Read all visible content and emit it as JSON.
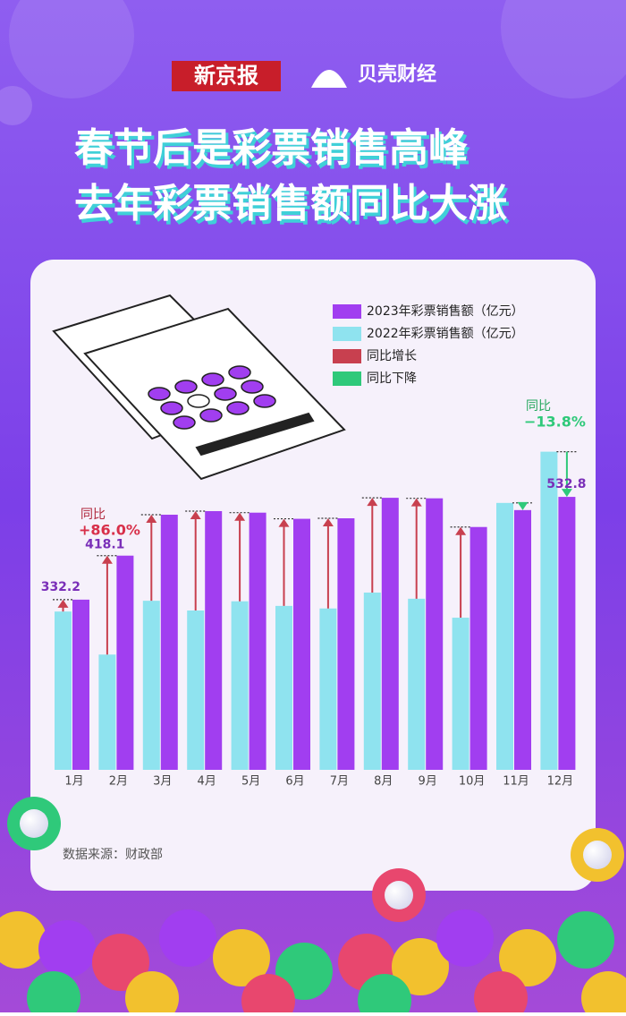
{
  "header": {
    "brand": "新京报",
    "sub_brand": "贝壳财经",
    "title_lines": [
      "春节后是彩票销售高峰",
      "去年彩票销售额同比大涨"
    ]
  },
  "chart_data": {
    "type": "bar",
    "categories": [
      "1月",
      "2月",
      "3月",
      "4月",
      "5月",
      "6月",
      "7月",
      "8月",
      "9月",
      "10月",
      "11月",
      "12月"
    ],
    "series": [
      {
        "name": "2023年彩票销售额（亿元）",
        "color": "#a13ef0",
        "values": [
          332.2,
          418.1,
          498,
          505,
          502,
          490,
          491,
          531,
          530,
          474,
          507,
          532.8
        ],
        "value_labels": [
          "332.2",
          "418.1",
          null,
          null,
          null,
          null,
          null,
          null,
          null,
          null,
          null,
          "532.8"
        ]
      },
      {
        "name": "2022年彩票销售额（亿元）",
        "color": "#8fe3ef",
        "values": [
          309,
          225,
          330,
          311,
          329,
          320,
          315,
          346,
          334,
          297,
          521,
          621
        ]
      }
    ],
    "change_legend": [
      {
        "name": "同比增长",
        "color": "#c8404f"
      },
      {
        "name": "同比下降",
        "color": "#2fc97a"
      }
    ],
    "annotations": [
      {
        "label": "同比",
        "text": "+86.0%"
      },
      {
        "label": "同比",
        "text": "−13.8%"
      }
    ],
    "ylim": [
      0,
      650
    ]
  },
  "footer": {
    "source": "数据来源：财政部"
  }
}
